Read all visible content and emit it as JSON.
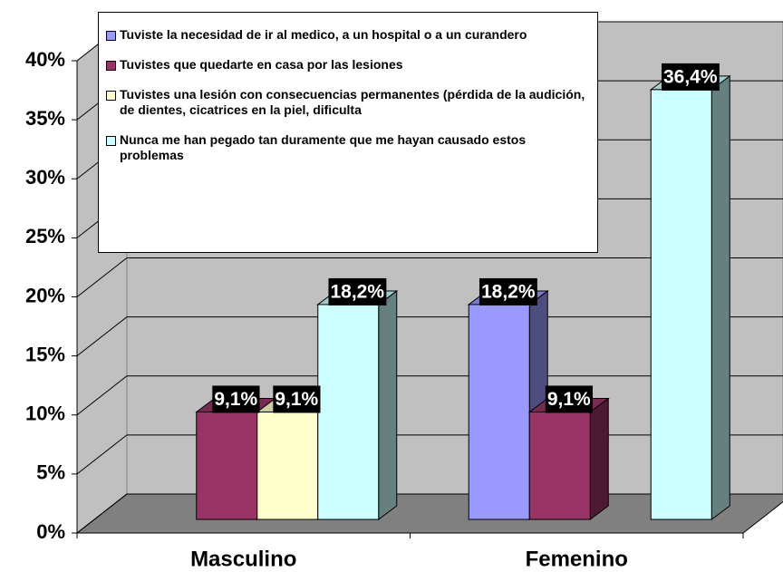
{
  "chart_data": {
    "type": "bar3d",
    "categories": [
      "Masculino",
      "Femenino"
    ],
    "series": [
      {
        "name": "Tuviste la necesidad de ir al medico, a un hospital o a un curandero",
        "color": "#9999ff",
        "values": [
          null,
          18.2
        ],
        "value_labels": [
          null,
          "18,2%"
        ]
      },
      {
        "name": "Tuvistes que quedarte en casa por las lesiones",
        "color": "#993366",
        "values": [
          9.1,
          9.1
        ],
        "value_labels": [
          "9,1%",
          "9,1%"
        ]
      },
      {
        "name": "Tuvistes una lesión con consecuencias permanentes (pérdida de la audición, de dientes, cicatrices en la piel, dificulta",
        "color": "#ffffcc",
        "values": [
          9.1,
          null
        ],
        "value_labels": [
          "9,1%",
          null
        ]
      },
      {
        "name": "Nunca me han pegado tan duramente que me hayan causado estos problemas",
        "color": "#ccffff",
        "values": [
          18.2,
          36.4
        ],
        "value_labels": [
          "18,2%",
          "36,4%"
        ]
      }
    ],
    "ylim": [
      0,
      40
    ],
    "yticks": [
      {
        "value": 0,
        "label": "0%"
      },
      {
        "value": 5,
        "label": "5%"
      },
      {
        "value": 10,
        "label": "10%"
      },
      {
        "value": 15,
        "label": "15%"
      },
      {
        "value": 20,
        "label": "20%"
      },
      {
        "value": 25,
        "label": "25%"
      },
      {
        "value": 30,
        "label": "30%"
      },
      {
        "value": 35,
        "label": "35%"
      },
      {
        "value": 40,
        "label": "40%"
      }
    ],
    "grid": true,
    "legend": "top"
  }
}
